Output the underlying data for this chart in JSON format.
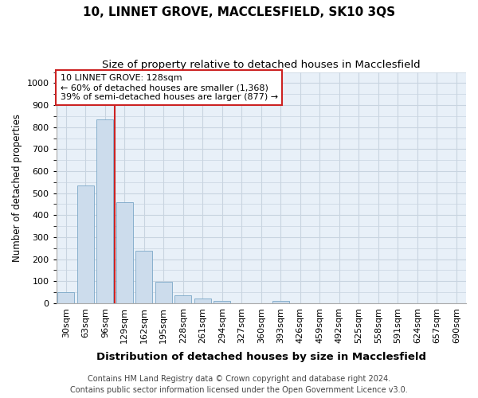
{
  "title1": "10, LINNET GROVE, MACCLESFIELD, SK10 3QS",
  "title2": "Size of property relative to detached houses in Macclesfield",
  "xlabel": "Distribution of detached houses by size in Macclesfield",
  "ylabel": "Number of detached properties",
  "footnote1": "Contains HM Land Registry data © Crown copyright and database right 2024.",
  "footnote2": "Contains public sector information licensed under the Open Government Licence v3.0.",
  "annotation_line1": "10 LINNET GROVE: 128sqm",
  "annotation_line2": "← 60% of detached houses are smaller (1,368)",
  "annotation_line3": "39% of semi-detached houses are larger (877) →",
  "categories": [
    "30sqm",
    "63sqm",
    "96sqm",
    "129sqm",
    "162sqm",
    "195sqm",
    "228sqm",
    "261sqm",
    "294sqm",
    "327sqm",
    "360sqm",
    "393sqm",
    "426sqm",
    "459sqm",
    "492sqm",
    "525sqm",
    "558sqm",
    "591sqm",
    "624sqm",
    "657sqm",
    "690sqm"
  ],
  "values": [
    50,
    535,
    835,
    460,
    240,
    97,
    35,
    20,
    12,
    0,
    0,
    10,
    0,
    0,
    0,
    0,
    0,
    0,
    0,
    0,
    0
  ],
  "bar_color": "#ccdcec",
  "bar_edge_color": "#7ba8c8",
  "red_line_bin_index": 3,
  "ylim": [
    0,
    1050
  ],
  "yticks": [
    0,
    100,
    200,
    300,
    400,
    500,
    600,
    700,
    800,
    900,
    1000
  ],
  "grid_color": "#c8d4e0",
  "background_color": "#e8f0f8",
  "annotation_box_facecolor": "#ffffff",
  "annotation_box_edgecolor": "#cc2222",
  "red_line_color": "#cc2222",
  "title1_fontsize": 11,
  "title2_fontsize": 9.5,
  "xlabel_fontsize": 9.5,
  "ylabel_fontsize": 8.5,
  "annotation_fontsize": 8,
  "footnote_fontsize": 7,
  "tick_fontsize": 8
}
